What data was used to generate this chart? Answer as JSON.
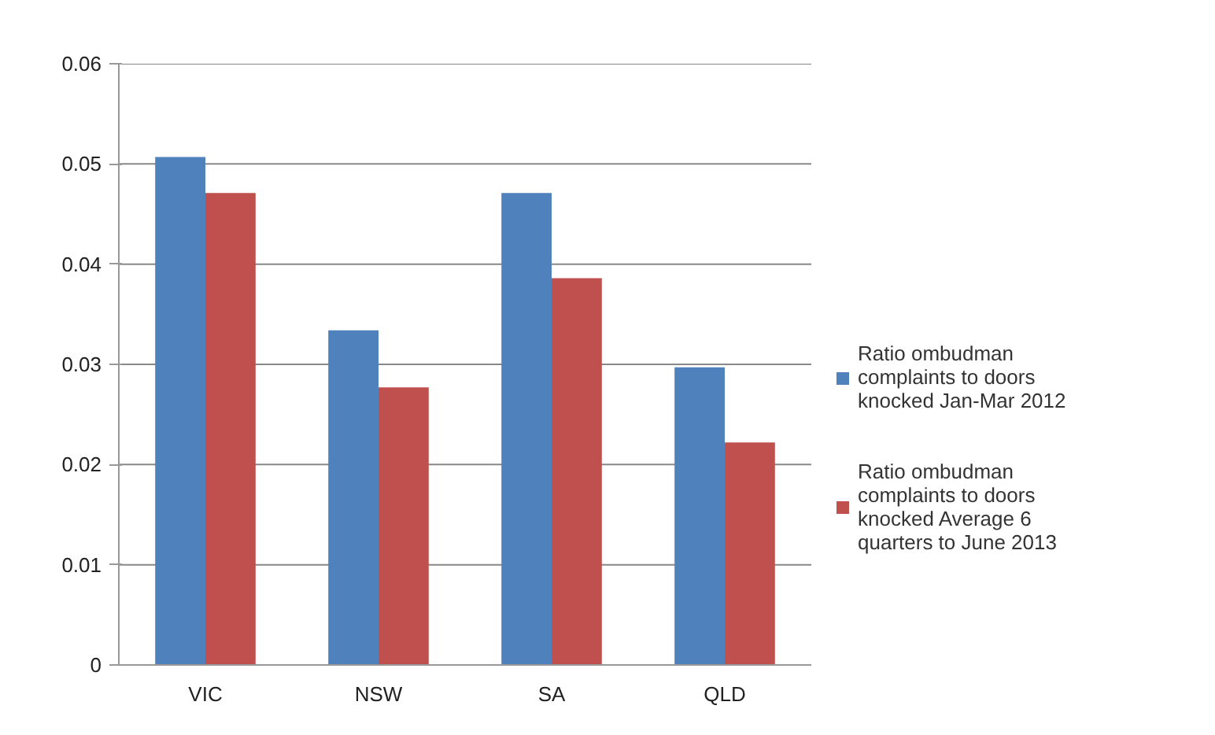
{
  "chart_data": {
    "type": "bar",
    "categories": [
      "VIC",
      "NSW",
      "SA",
      "QLD"
    ],
    "series": [
      {
        "name": "Ratio ombudman complaints to doors knocked Jan-Mar 2012",
        "color": "#4f81bd",
        "values": [
          0.0507,
          0.0334,
          0.0471,
          0.0297
        ]
      },
      {
        "name": "Ratio ombudman complaints to doors knocked Average 6 quarters to June 2013",
        "color": "#c0504d",
        "values": [
          0.0471,
          0.0277,
          0.0386,
          0.0222
        ]
      }
    ],
    "ylim": [
      0,
      0.06
    ],
    "yticks": [
      {
        "value": 0,
        "label": "0"
      },
      0.01,
      0.02,
      0.03,
      0.04,
      0.05,
      0.06
    ],
    "grid": "y",
    "legend": "right"
  }
}
